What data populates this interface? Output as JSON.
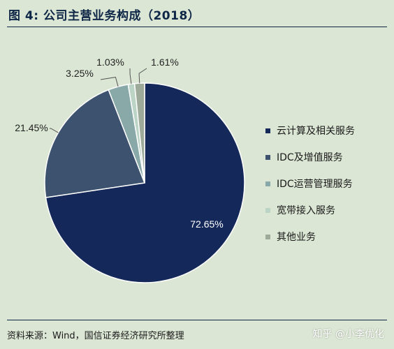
{
  "title": "图 4:  公司主营业务构成（2018）",
  "source": "资料来源：Wind，国信证券经济研究所整理",
  "watermark": "知乎 @小李优化",
  "chart_data": {
    "type": "pie",
    "title": "图 4:  公司主营业务构成（2018）",
    "slices": [
      {
        "name": "云计算及相关服务",
        "value": 72.65,
        "label": "72.65%",
        "color": "#14295a"
      },
      {
        "name": "IDC及增值服务",
        "value": 21.45,
        "label": "21.45%",
        "color": "#3d526e"
      },
      {
        "name": "IDC运营管理服务",
        "value": 3.25,
        "label": "3.25%",
        "color": "#89a8a8"
      },
      {
        "name": "宽带接入服务",
        "value": 1.03,
        "label": "1.03%",
        "color": "#bcd4c6"
      },
      {
        "name": "其他业务",
        "value": 1.61,
        "label": "1.61%",
        "color": "#9eab9a"
      }
    ],
    "legend_position": "right"
  }
}
